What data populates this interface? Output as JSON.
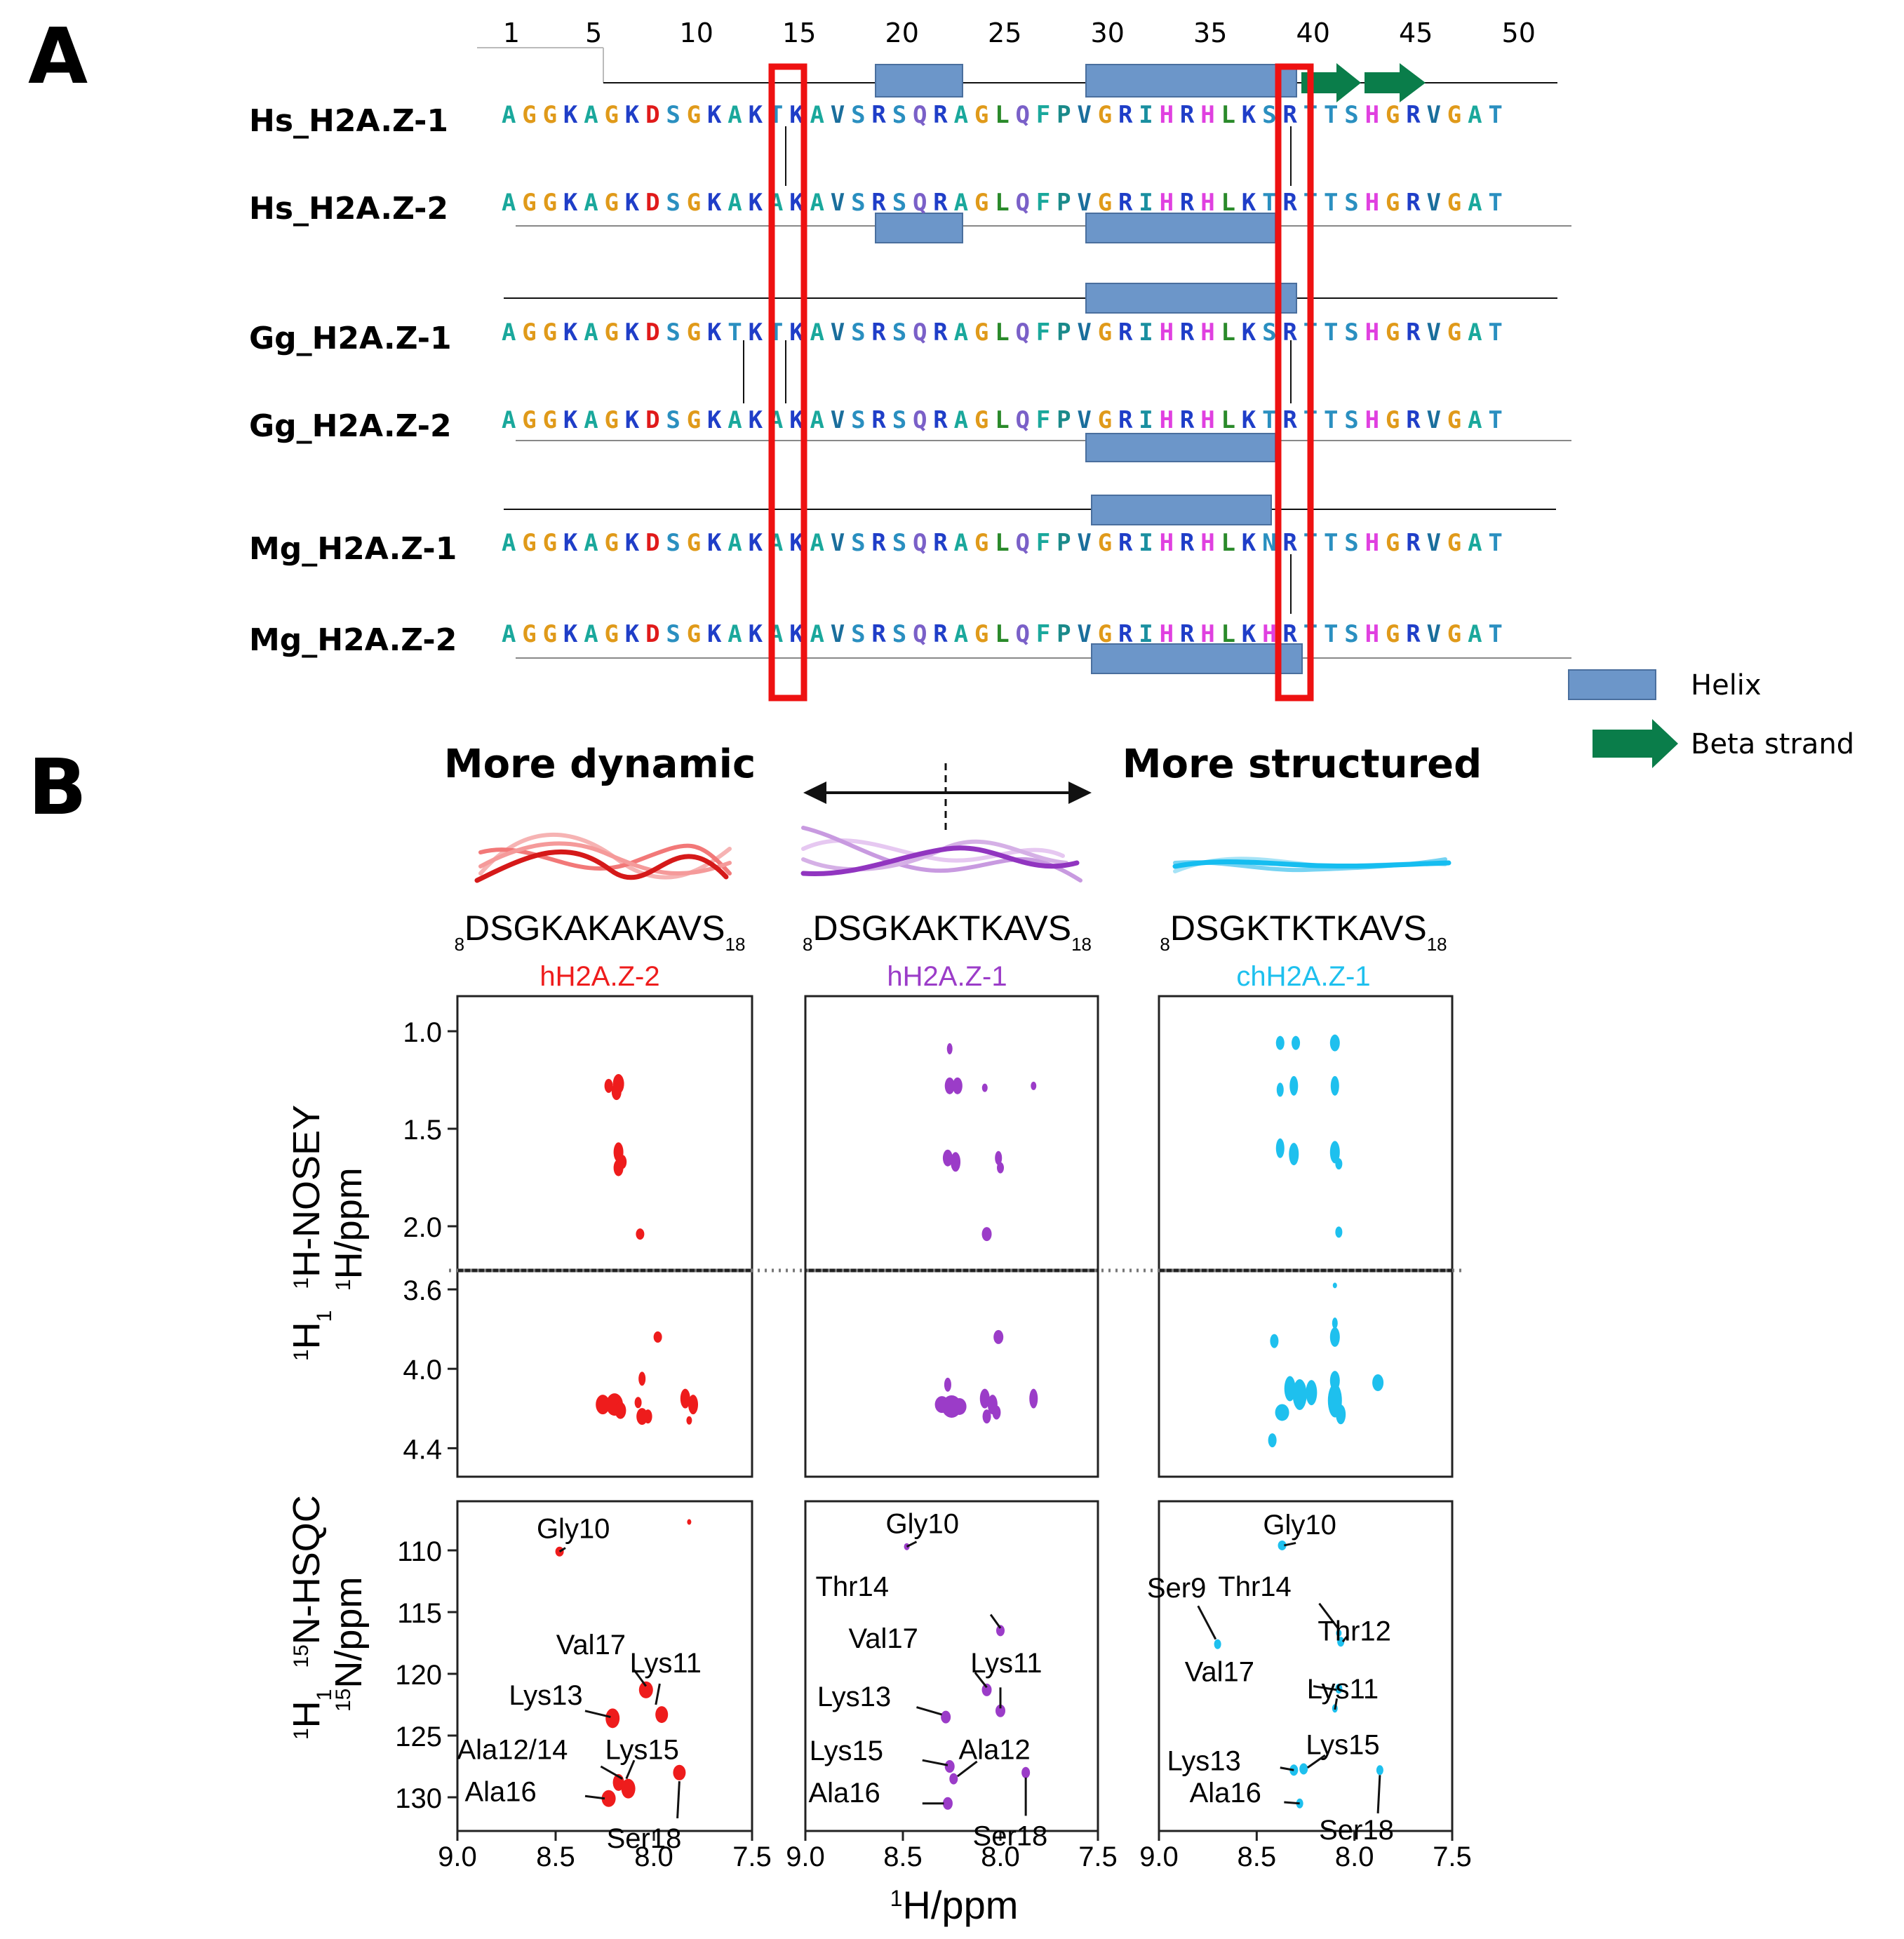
{
  "panel_a": {
    "label": "A",
    "ruler": [
      "1",
      "5",
      "10",
      "15",
      "20",
      "25",
      "30",
      "35",
      "40",
      "45",
      "50"
    ],
    "sequences": [
      {
        "name": "Hs_H2A.Z-1",
        "seq": "AGGKAGKDSGKAKTKAVSRSQRAGLQFPVGRIHRHLKSRTTSHGRVGAT"
      },
      {
        "name": "Hs_H2A.Z-2",
        "seq": "AGGKAGKDSGKAKAKAVSRSQRAGLQFPVGRIHRHLKTRTTSHGRVGAT"
      },
      {
        "name": "Gg_H2A.Z-1",
        "seq": "AGGKAGKDSGKTKTKAVSRSQRAGLQFPVGRIHRHLKSRTTSHGRVGAT"
      },
      {
        "name": "Gg_H2A.Z-2",
        "seq": "AGGKAGKDSGKAKAKAVSRSQRAGLQFPVGRIHRHLKTRTTSHGRVGAT"
      },
      {
        "name": "Mg_H2A.Z-1",
        "seq": "AGGKAGKDSGKAKAKAVSRSQRAGLQFPVGRIHRHLKNRTTSHGRVGAT"
      },
      {
        "name": "Mg_H2A.Z-2",
        "seq": "AGGKAGKDSGKAKAKAVSRSQRAGLQFPVGRIHRHLKHRTTSHGRVGAT"
      }
    ],
    "legend": {
      "helix": "Helix",
      "beta": "Beta strand"
    }
  },
  "panel_b": {
    "label": "B",
    "more_dynamic": "More dynamic",
    "more_structured": "More structured",
    "peptides": [
      {
        "pre": "8",
        "seq": "DSGKAKAKAVS",
        "post": "18",
        "name": "hH2A.Z-2",
        "color": "#ee1c1c"
      },
      {
        "pre": "8",
        "seq": "DSGKAKTKAVS",
        "post": "18",
        "name": "hH2A.Z-1",
        "color": "#9b3cc8"
      },
      {
        "pre": "8",
        "seq": "DSGKTKTKAVS",
        "post": "18",
        "name": "chH2A.Z-1",
        "color": "#1ec0ee"
      }
    ],
    "noesy_ylabel_1": "1H1 1H-NOSEY",
    "noesy_ylabel_2": "1H/ppm",
    "hsqc_ylabel_1": "1H1 15N-HSQC",
    "hsqc_ylabel_2": "15N/ppm",
    "noesy_upper_ticks": [
      "1.0",
      "1.5",
      "2.0"
    ],
    "noesy_lower_ticks": [
      "3.6",
      "4.0",
      "4.4"
    ],
    "hsqc_ticks": [
      "110",
      "115",
      "120",
      "125",
      "130"
    ],
    "x_ticks": [
      "9.0",
      "8.5",
      "8.0",
      "7.5"
    ],
    "x_ticks_panel2": [
      "9.0",
      "8.5",
      "8.0",
      "7.5"
    ],
    "x_ticks_panel3": [
      "9.0",
      "8.5",
      "8.0",
      "7.5"
    ],
    "x_label": "1H/ppm",
    "hsqc_panels": [
      {
        "labels": [
          "Gly10",
          "Val17",
          "Lys11",
          "Lys13",
          "Ala12/14",
          "Lys15",
          "Ala16",
          "Ser18"
        ]
      },
      {
        "labels": [
          "Gly10",
          "Thr14",
          "Val17",
          "Lys11",
          "Lys13",
          "Lys15",
          "Ala12",
          "Ala16",
          "Ser18"
        ]
      },
      {
        "labels": [
          "Gly10",
          "Ser9",
          "Thr14",
          "Thr12",
          "Val17",
          "Lys11",
          "Lys13",
          "Lys15",
          "Ala16",
          "Ser18"
        ]
      }
    ]
  }
}
